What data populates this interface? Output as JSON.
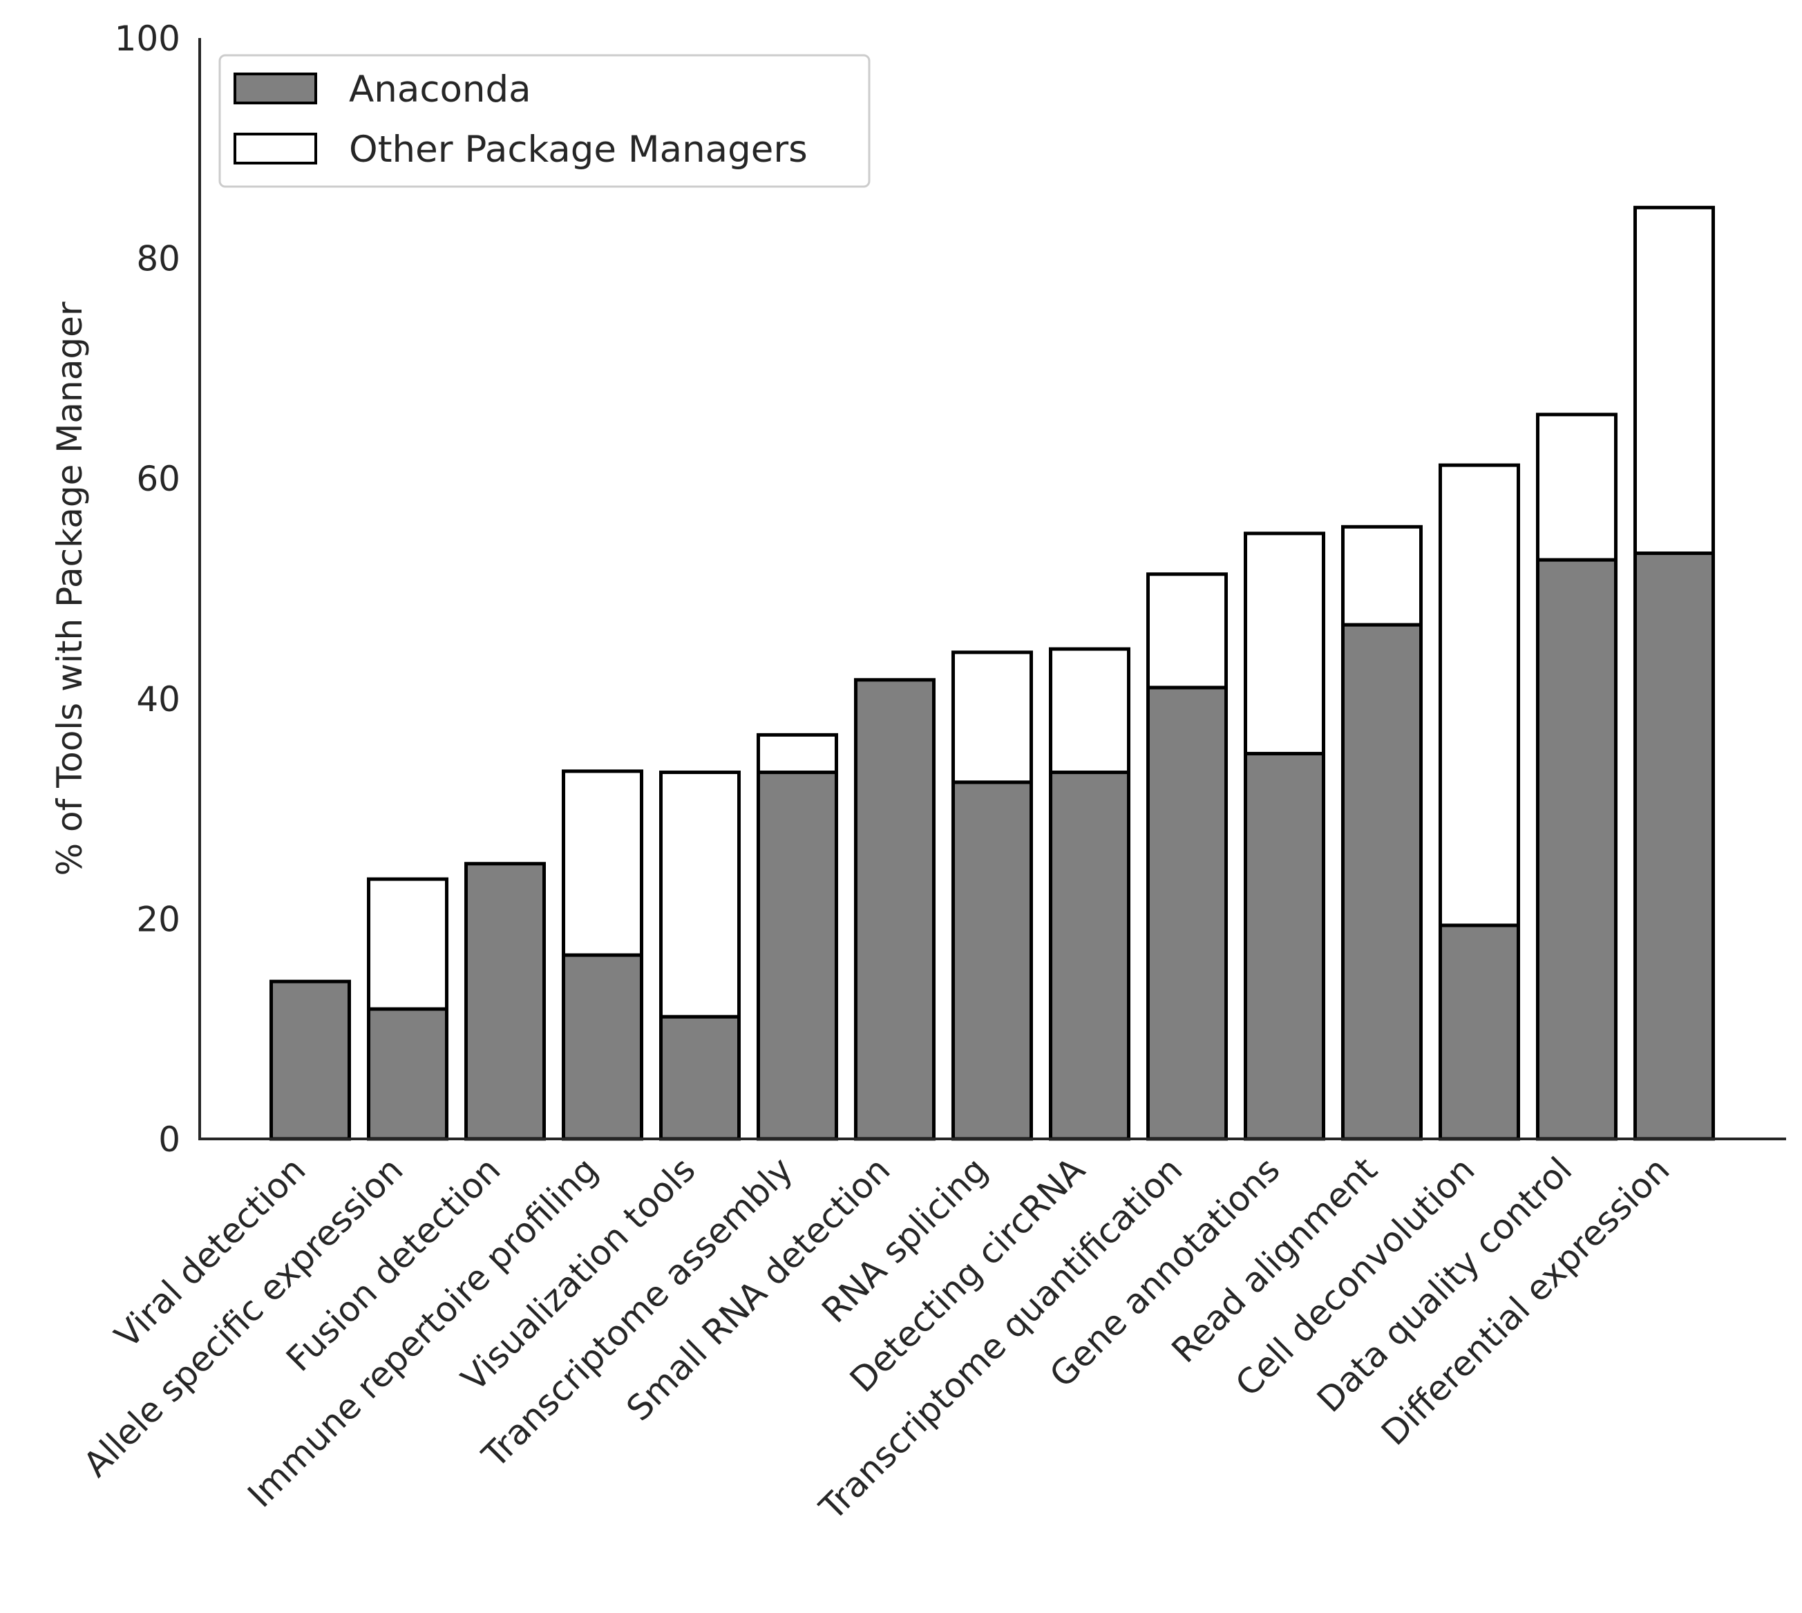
{
  "chart_data": {
    "type": "bar",
    "stacked": true,
    "title": "",
    "xlabel": "",
    "ylabel": "% of Tools with Package Manager",
    "ylim": [
      0,
      100
    ],
    "yticks": [
      0,
      20,
      40,
      60,
      80,
      100
    ],
    "grid": false,
    "legend_position": "top-left",
    "categories": [
      "Viral detection",
      "Allele specific expression",
      "Fusion detection",
      "Immune repertoire profiling",
      "Visualization tools",
      "Transcriptome assembly",
      "Small RNA detection",
      "RNA splicing",
      "Detecting circRNA",
      "Transcriptome quantification",
      "Gene annotations",
      "Read alignment",
      "Cell deconvolution",
      "Data quality control",
      "Differential expression"
    ],
    "series": [
      {
        "name": "Anaconda",
        "color": "#808080",
        "values": [
          14.3,
          11.8,
          25.0,
          16.7,
          11.1,
          33.3,
          41.7,
          32.4,
          33.3,
          41.0,
          35.0,
          46.7,
          19.4,
          52.6,
          53.2
        ]
      },
      {
        "name": "Other Package Managers",
        "color": "#ffffff",
        "values": [
          0.0,
          11.8,
          0.0,
          16.7,
          22.2,
          3.4,
          0.0,
          11.8,
          11.2,
          10.3,
          20.0,
          8.9,
          41.8,
          13.2,
          31.4
        ]
      }
    ]
  }
}
